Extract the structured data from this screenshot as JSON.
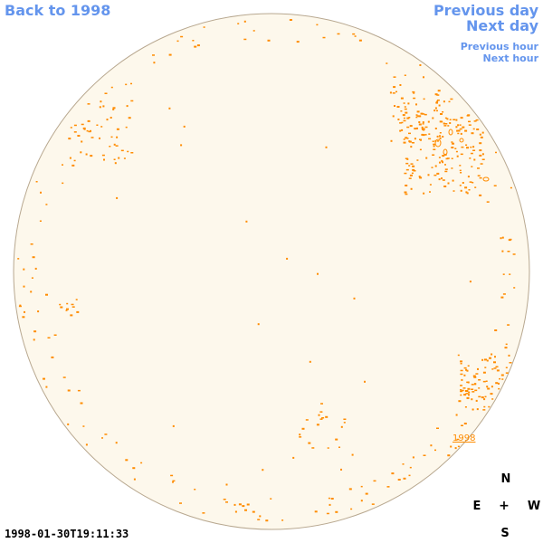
{
  "navigation": {
    "back_label": "Back to 1998",
    "previous_day_label": "Previous day",
    "next_day_label": "Next day",
    "previous_hour_label": "Previous hour",
    "next_hour_label": "Next hour",
    "link_color": "#6495ed"
  },
  "solar_disk": {
    "fill_color": "#fdf8ec",
    "outline_color": "#b8a890",
    "feature_color": "#ff8c00",
    "year_label": "1998"
  },
  "compass": {
    "north": "N",
    "south": "S",
    "east": "E",
    "west": "W",
    "center": "+"
  },
  "timestamp": "1998-01-30T19:11:33"
}
